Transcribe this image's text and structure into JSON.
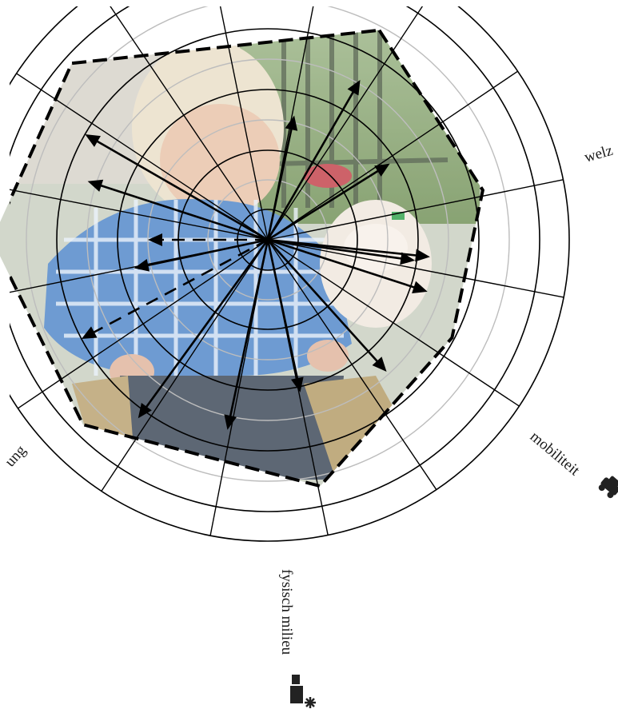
{
  "diagram": {
    "type": "radar-overlay-on-photo",
    "photo_subject": "child-with-lamb",
    "ring_count": 6,
    "spoke_count": 16,
    "arrow_directions_deg": [
      -78,
      -60,
      -32,
      6,
      8,
      18,
      48,
      78,
      102,
      126,
      152,
      168,
      180,
      198,
      210
    ],
    "arrow_lengths": [
      0.53,
      0.77,
      0.6,
      0.68,
      0.62,
      0.7,
      0.74,
      0.65,
      0.81,
      0.92,
      0.88,
      0.57,
      0.5,
      0.79,
      0.88
    ],
    "polygon_vertices": [
      {
        "angle_deg": -62,
        "level": 0.99
      },
      {
        "angle_deg": -13,
        "level": 0.92
      },
      {
        "angle_deg": 28,
        "level": 0.87
      },
      {
        "angle_deg": 78,
        "level": 1.05
      },
      {
        "angle_deg": 135,
        "level": 1.09
      },
      {
        "angle_deg": 180,
        "level": 1.15
      },
      {
        "angle_deg": 222,
        "level": 1.1
      }
    ],
    "labels": {
      "welzijn": "welz",
      "mobiliteit": "mobiliteit",
      "fysisch_milieu": "fysisch milieu",
      "left_label": "ung"
    },
    "icons": [
      "car-icon",
      "factory-icon"
    ],
    "colors": {
      "ring_dark": "#000000",
      "ring_light": "#bdbdbd",
      "polygon_stroke": "#000000",
      "arrow": "#000000"
    }
  }
}
